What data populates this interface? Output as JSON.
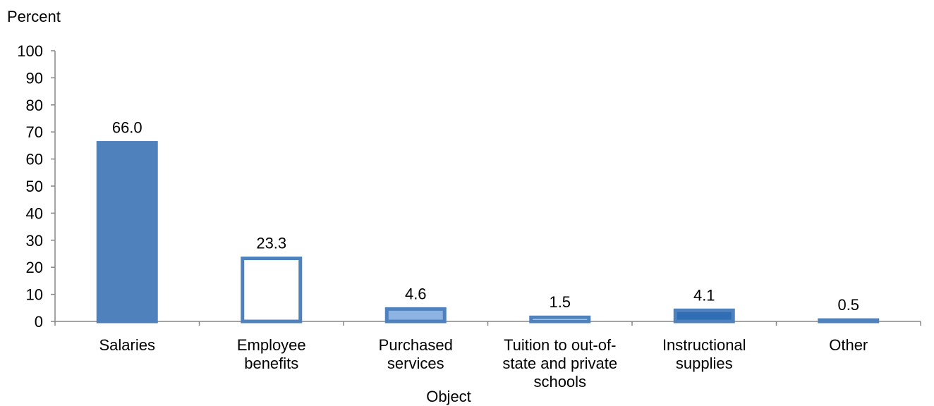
{
  "chart_data": {
    "type": "bar",
    "ylabel": "Percent",
    "xlabel": "Object",
    "ylim": [
      0,
      100
    ],
    "yticks": [
      0,
      10,
      20,
      30,
      40,
      50,
      60,
      70,
      80,
      90,
      100
    ],
    "grid": false,
    "categories": [
      [
        "Salaries"
      ],
      [
        "Employee",
        "benefits"
      ],
      [
        "Purchased",
        "services"
      ],
      [
        "Tuition to out-of-",
        "state and private",
        "schools"
      ],
      [
        "Instructional",
        "supplies"
      ],
      [
        "Other"
      ]
    ],
    "values": [
      66.0,
      23.3,
      4.6,
      1.5,
      4.1,
      0.5
    ],
    "value_labels": [
      "66.0",
      "23.3",
      "4.6",
      "1.5",
      "4.1",
      "0.5"
    ],
    "bar_fills": [
      "#4f81bd",
      "#ffffff",
      "#8db3e2",
      "#ffffff",
      "#2f6db5",
      "#4f81bd"
    ],
    "bar_outline_color": "#4f81bd"
  }
}
